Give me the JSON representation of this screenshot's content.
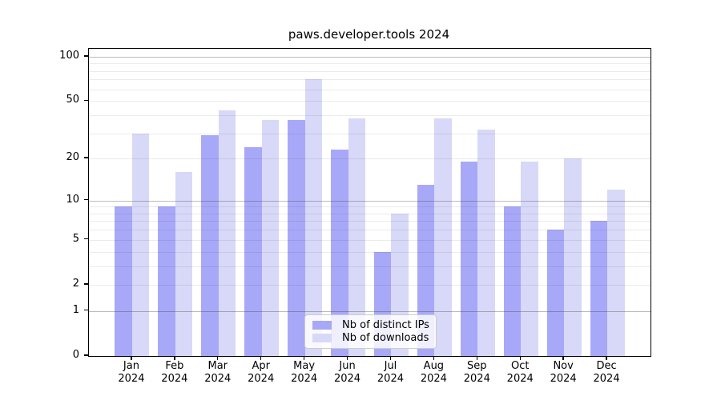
{
  "title": "paws.developer.tools 2024",
  "colors": {
    "distinct_ips": "#a8a8f8",
    "downloads": "#d8d8f8",
    "grid_major": "rgba(60,60,60,0.35)",
    "grid_minor": "rgba(0,0,0,0.08)",
    "axis": "#000000",
    "background": "#ffffff",
    "legend_border": "#cccccc"
  },
  "chart_data": {
    "type": "bar",
    "title": "paws.developer.tools 2024",
    "scale": "log1p",
    "categories": [
      "Jan",
      "Feb",
      "Mar",
      "Apr",
      "May",
      "Jun",
      "Jul",
      "Aug",
      "Sep",
      "Oct",
      "Nov",
      "Dec"
    ],
    "year_label": "2024",
    "series": [
      {
        "name": "Nb of distinct IPs",
        "color_key": "distinct_ips",
        "values": [
          9,
          9,
          29,
          24,
          37,
          23,
          4,
          13,
          19,
          9,
          6,
          7
        ]
      },
      {
        "name": "Nb of downloads",
        "color_key": "downloads",
        "values": [
          30,
          16,
          43,
          37,
          70,
          38,
          8,
          38,
          32,
          19,
          20,
          12
        ]
      }
    ],
    "yticks": [
      0,
      1,
      2,
      5,
      10,
      20,
      50,
      100
    ],
    "grid_major_values": [
      1,
      10,
      100
    ],
    "grid_minor_values": [
      2,
      3,
      4,
      5,
      6,
      7,
      8,
      9,
      20,
      30,
      40,
      50,
      60,
      70,
      80,
      90
    ],
    "ylim": [
      0,
      113
    ],
    "xlabel": "",
    "ylabel": "",
    "grid": "on",
    "legend_position": "lower center"
  }
}
